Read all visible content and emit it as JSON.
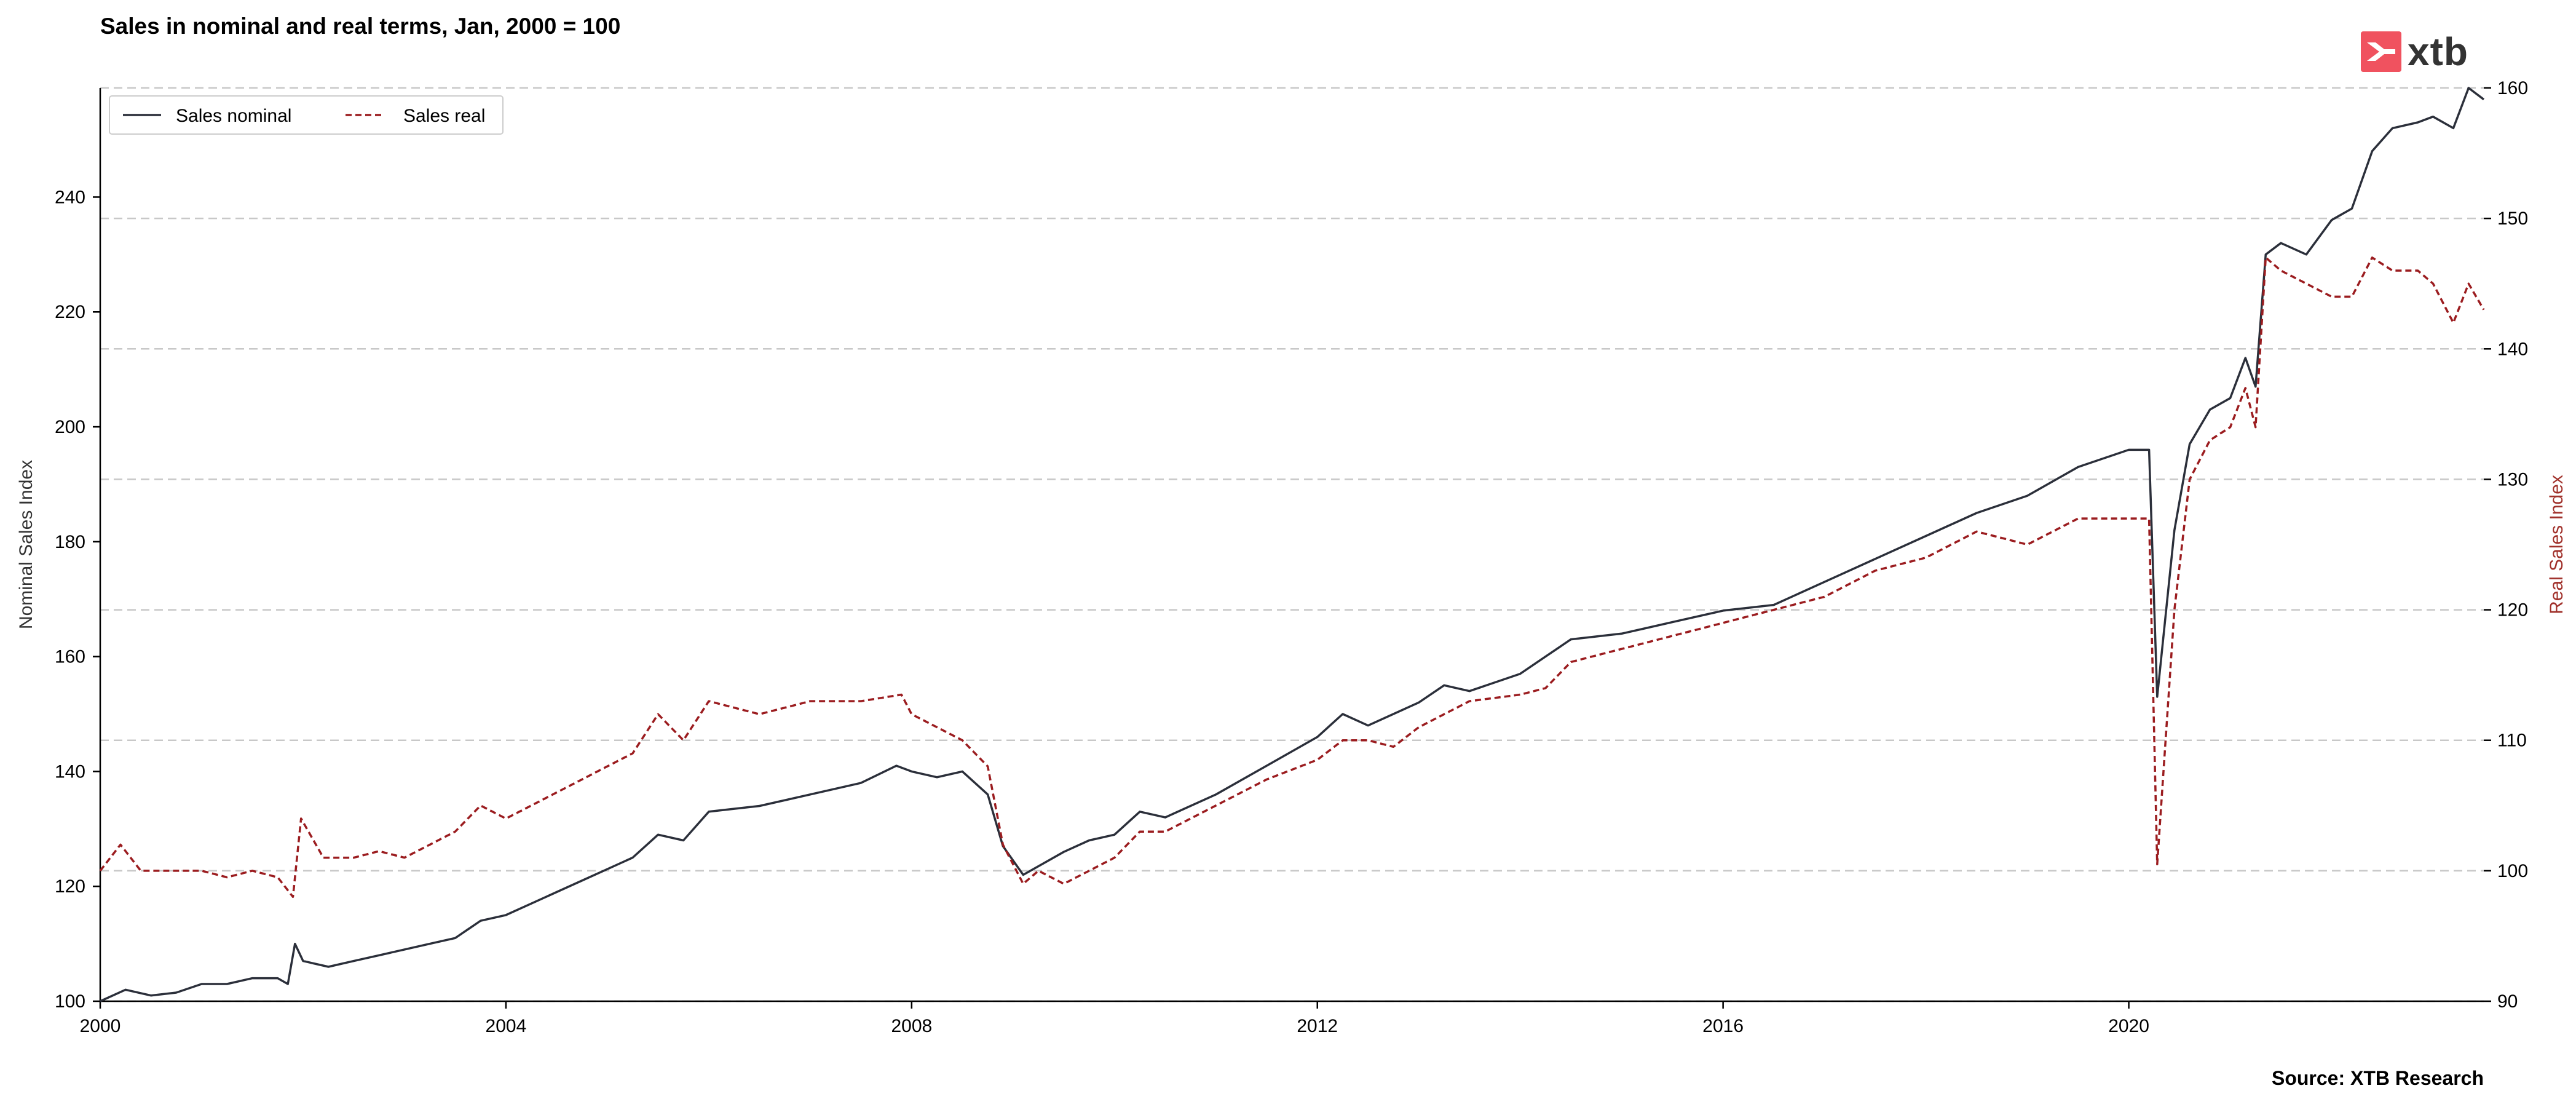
{
  "title": "Sales in nominal and real terms, Jan, 2000 = 100",
  "source": "Source: XTB Research",
  "logo": {
    "text": "xtb",
    "color": "#f0525f"
  },
  "chart_data": {
    "type": "line",
    "title": "Sales in nominal and real terms, Jan, 2000 = 100",
    "xlabel": "",
    "ylabel_left": "Nominal Sales Index",
    "ylabel_right": "Real Sales Index",
    "xlim": [
      2000,
      2023.5
    ],
    "ylim_left": [
      100,
      259
    ],
    "ylim_right": [
      90,
      160
    ],
    "xticks": [
      "2000",
      "2004",
      "2008",
      "2012",
      "2016",
      "2020"
    ],
    "yticks_left": [
      "100",
      "120",
      "140",
      "160",
      "180",
      "200",
      "220",
      "240"
    ],
    "yticks_right": [
      "90",
      "100",
      "110",
      "120",
      "130",
      "140",
      "150",
      "160"
    ],
    "grid": "horizontal-dashed",
    "legend_position": "top-left",
    "colors": {
      "nominal": "#2b2f3a",
      "real": "#9b1c1f",
      "right_axis_label": "#a0302a",
      "grid": "#c8c8c8"
    },
    "series": [
      {
        "name": "Sales nominal",
        "axis": "left",
        "style": "solid",
        "points": [
          [
            2000.0,
            100
          ],
          [
            2000.25,
            102
          ],
          [
            2000.5,
            101
          ],
          [
            2000.75,
            101.5
          ],
          [
            2001.0,
            103
          ],
          [
            2001.25,
            103
          ],
          [
            2001.5,
            104
          ],
          [
            2001.75,
            104
          ],
          [
            2001.85,
            103
          ],
          [
            2001.92,
            110
          ],
          [
            2002.0,
            107
          ],
          [
            2002.25,
            106
          ],
          [
            2002.5,
            107
          ],
          [
            2002.75,
            108
          ],
          [
            2003.0,
            109
          ],
          [
            2003.25,
            110
          ],
          [
            2003.5,
            111
          ],
          [
            2003.75,
            114
          ],
          [
            2004.0,
            115
          ],
          [
            2004.25,
            117
          ],
          [
            2004.5,
            119
          ],
          [
            2004.75,
            121
          ],
          [
            2005.0,
            123
          ],
          [
            2005.25,
            125
          ],
          [
            2005.5,
            129
          ],
          [
            2005.75,
            128
          ],
          [
            2006.0,
            133
          ],
          [
            2006.5,
            134
          ],
          [
            2007.0,
            136
          ],
          [
            2007.5,
            138
          ],
          [
            2007.85,
            141
          ],
          [
            2008.0,
            140
          ],
          [
            2008.25,
            139
          ],
          [
            2008.5,
            140
          ],
          [
            2008.75,
            136
          ],
          [
            2008.9,
            127
          ],
          [
            2009.1,
            122
          ],
          [
            2009.5,
            126
          ],
          [
            2009.75,
            128
          ],
          [
            2010.0,
            129
          ],
          [
            2010.25,
            133
          ],
          [
            2010.5,
            132
          ],
          [
            2011.0,
            136
          ],
          [
            2011.5,
            141
          ],
          [
            2012.0,
            146
          ],
          [
            2012.25,
            150
          ],
          [
            2012.5,
            148
          ],
          [
            2013.0,
            152
          ],
          [
            2013.25,
            155
          ],
          [
            2013.5,
            154
          ],
          [
            2014.0,
            157
          ],
          [
            2014.25,
            160
          ],
          [
            2014.5,
            163
          ],
          [
            2015.0,
            164
          ],
          [
            2015.5,
            166
          ],
          [
            2016.0,
            168
          ],
          [
            2016.5,
            169
          ],
          [
            2017.0,
            173
          ],
          [
            2017.5,
            177
          ],
          [
            2018.0,
            181
          ],
          [
            2018.5,
            185
          ],
          [
            2019.0,
            188
          ],
          [
            2019.5,
            193
          ],
          [
            2020.0,
            196
          ],
          [
            2020.2,
            196
          ],
          [
            2020.28,
            153
          ],
          [
            2020.45,
            182
          ],
          [
            2020.6,
            197
          ],
          [
            2020.8,
            203
          ],
          [
            2021.0,
            205
          ],
          [
            2021.15,
            212
          ],
          [
            2021.25,
            207
          ],
          [
            2021.35,
            230
          ],
          [
            2021.5,
            232
          ],
          [
            2021.75,
            230
          ],
          [
            2022.0,
            236
          ],
          [
            2022.2,
            238
          ],
          [
            2022.4,
            248
          ],
          [
            2022.6,
            252
          ],
          [
            2022.85,
            253
          ],
          [
            2023.0,
            254
          ],
          [
            2023.2,
            252
          ],
          [
            2023.35,
            259
          ],
          [
            2023.5,
            257
          ]
        ]
      },
      {
        "name": "Sales real",
        "axis": "right",
        "style": "dashed",
        "points": [
          [
            2000.0,
            100
          ],
          [
            2000.2,
            102
          ],
          [
            2000.4,
            100
          ],
          [
            2000.75,
            100
          ],
          [
            2001.0,
            100
          ],
          [
            2001.25,
            99.5
          ],
          [
            2001.5,
            100
          ],
          [
            2001.75,
            99.5
          ],
          [
            2001.9,
            98
          ],
          [
            2001.98,
            104
          ],
          [
            2002.2,
            101
          ],
          [
            2002.5,
            101
          ],
          [
            2002.75,
            101.5
          ],
          [
            2003.0,
            101
          ],
          [
            2003.25,
            102
          ],
          [
            2003.5,
            103
          ],
          [
            2003.75,
            105
          ],
          [
            2004.0,
            104
          ],
          [
            2004.25,
            105
          ],
          [
            2004.5,
            106
          ],
          [
            2004.75,
            107
          ],
          [
            2005.0,
            108
          ],
          [
            2005.25,
            109
          ],
          [
            2005.5,
            112
          ],
          [
            2005.75,
            110
          ],
          [
            2006.0,
            113
          ],
          [
            2006.5,
            112
          ],
          [
            2007.0,
            113
          ],
          [
            2007.5,
            113
          ],
          [
            2007.9,
            113.5
          ],
          [
            2008.0,
            112
          ],
          [
            2008.25,
            111
          ],
          [
            2008.5,
            110
          ],
          [
            2008.75,
            108
          ],
          [
            2008.9,
            102
          ],
          [
            2009.1,
            99
          ],
          [
            2009.25,
            100
          ],
          [
            2009.5,
            99
          ],
          [
            2009.75,
            100
          ],
          [
            2010.0,
            101
          ],
          [
            2010.25,
            103
          ],
          [
            2010.5,
            103
          ],
          [
            2011.0,
            105
          ],
          [
            2011.5,
            107
          ],
          [
            2012.0,
            108.5
          ],
          [
            2012.25,
            110
          ],
          [
            2012.5,
            110
          ],
          [
            2012.75,
            109.5
          ],
          [
            2013.0,
            111
          ],
          [
            2013.5,
            113
          ],
          [
            2014.0,
            113.5
          ],
          [
            2014.25,
            114
          ],
          [
            2014.5,
            116
          ],
          [
            2015.0,
            117
          ],
          [
            2015.5,
            118
          ],
          [
            2016.0,
            119
          ],
          [
            2016.5,
            120
          ],
          [
            2017.0,
            121
          ],
          [
            2017.5,
            123
          ],
          [
            2018.0,
            124
          ],
          [
            2018.5,
            126
          ],
          [
            2019.0,
            125
          ],
          [
            2019.5,
            127
          ],
          [
            2020.0,
            127
          ],
          [
            2020.2,
            127
          ],
          [
            2020.28,
            100.5
          ],
          [
            2020.45,
            120
          ],
          [
            2020.6,
            130
          ],
          [
            2020.8,
            133
          ],
          [
            2021.0,
            134
          ],
          [
            2021.15,
            137
          ],
          [
            2021.25,
            134
          ],
          [
            2021.35,
            147
          ],
          [
            2021.5,
            146
          ],
          [
            2021.75,
            145
          ],
          [
            2022.0,
            144
          ],
          [
            2022.2,
            144
          ],
          [
            2022.4,
            147
          ],
          [
            2022.6,
            146
          ],
          [
            2022.85,
            146
          ],
          [
            2023.0,
            145
          ],
          [
            2023.2,
            142
          ],
          [
            2023.35,
            145
          ],
          [
            2023.5,
            143
          ]
        ]
      }
    ]
  }
}
